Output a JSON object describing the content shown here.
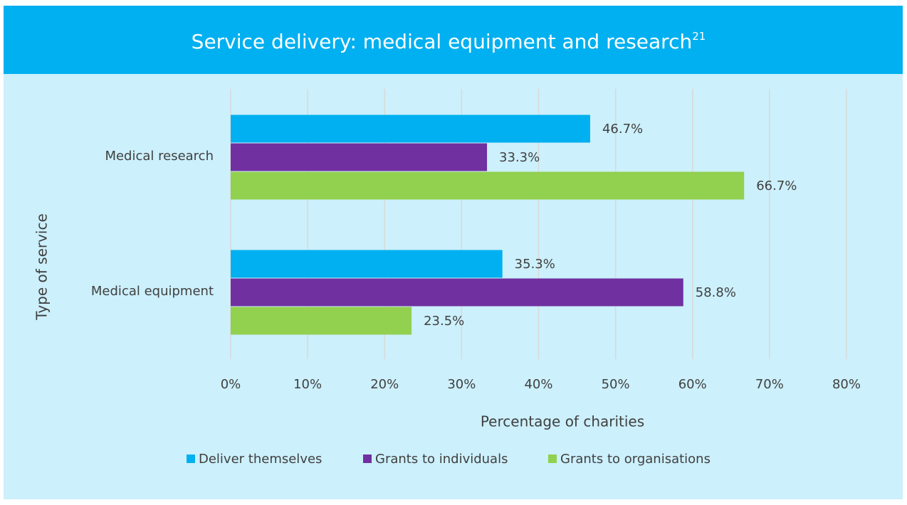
{
  "chart_data": {
    "type": "hbar",
    "title": "Service delivery: medical equipment and research",
    "title_superscript": "21",
    "categories": [
      "Medical research",
      "Medical equipment"
    ],
    "series": [
      {
        "name": "Deliver themselves",
        "color": "#00b0f0",
        "values": [
          46.7,
          35.3
        ],
        "value_labels": [
          "46.7%",
          "35.3%"
        ]
      },
      {
        "name": "Grants to individuals",
        "color": "#7030a0",
        "values": [
          33.3,
          58.8
        ],
        "value_labels": [
          "33.3%",
          "58.8%"
        ]
      },
      {
        "name": "Grants to organisations",
        "color": "#92d050",
        "values": [
          66.7,
          23.5
        ],
        "value_labels": [
          "66.7%",
          "23.5%"
        ]
      }
    ],
    "xlim": [
      0,
      80
    ],
    "xticks": [
      {
        "value": 0,
        "label": "0%"
      },
      {
        "value": 10,
        "label": "10%"
      },
      {
        "value": 20,
        "label": "20%"
      },
      {
        "value": 30,
        "label": "30%"
      },
      {
        "value": 40,
        "label": "40%"
      },
      {
        "value": 50,
        "label": "50%"
      },
      {
        "value": 60,
        "label": "60%"
      },
      {
        "value": 70,
        "label": "70%"
      },
      {
        "value": 80,
        "label": "80%"
      }
    ],
    "xlabel": "Percentage of charities",
    "ylabel": "Type of service",
    "grid": true,
    "legend": "bottom"
  }
}
